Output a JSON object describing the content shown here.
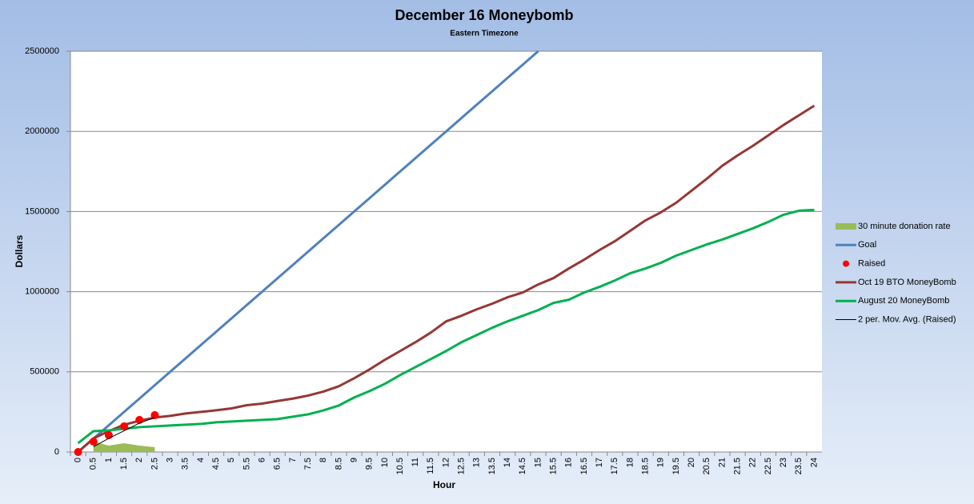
{
  "chart_data": {
    "type": "line",
    "title": "December 16 Moneybomb",
    "subtitle": "Eastern Timezone",
    "x_label": "Hour",
    "y_label": "Dollars",
    "categories": [
      "0",
      "0.5",
      "1",
      "1.5",
      "2",
      "2.5",
      "3",
      "3.5",
      "4",
      "4.5",
      "5",
      "5.5",
      "6",
      "6.5",
      "7",
      "7.5",
      "8",
      "8.5",
      "9",
      "9.5",
      "10",
      "10.5",
      "11",
      "11.5",
      "12",
      "12.5",
      "13",
      "13.5",
      "14",
      "14.5",
      "15",
      "15.5",
      "16",
      "16.5",
      "17",
      "17.5",
      "18",
      "18.5",
      "19",
      "19.5",
      "20",
      "20.5",
      "21",
      "21.5",
      "22",
      "22.5",
      "23",
      "23.5",
      "24"
    ],
    "ylim": [
      0,
      2500000
    ],
    "yticks": [
      0,
      500000,
      1000000,
      1500000,
      2000000,
      2500000
    ],
    "grid": true,
    "legend": "right",
    "series": [
      {
        "name": "30 minute donation rate",
        "type": "area",
        "color": "#9bbb59",
        "values": [
          null,
          65000,
          40000,
          55000,
          40000,
          30000,
          null,
          null,
          null,
          null,
          null,
          null,
          null,
          null,
          null,
          null,
          null,
          null,
          null,
          null,
          null,
          null,
          null,
          null,
          null,
          null,
          null,
          null,
          null,
          null,
          null,
          null,
          null,
          null,
          null,
          null,
          null,
          null,
          null,
          null,
          null,
          null,
          null,
          null,
          null,
          null,
          null,
          null,
          null
        ]
      },
      {
        "name": "Goal",
        "type": "line",
        "color": "#4f81bd",
        "values": [
          0,
          83333,
          166667,
          250000,
          333333,
          416667,
          500000,
          583333,
          666667,
          750000,
          833333,
          916667,
          1000000,
          1083333,
          1166667,
          1250000,
          1333333,
          1416667,
          1500000,
          1583333,
          1666667,
          1750000,
          1833333,
          1916667,
          2000000,
          2083333,
          2166667,
          2250000,
          2333333,
          2416667,
          2500000,
          null,
          null,
          null,
          null,
          null,
          null,
          null,
          null,
          null,
          null,
          null,
          null,
          null,
          null,
          null,
          null,
          null,
          null
        ]
      },
      {
        "name": "Raised",
        "type": "scatter",
        "color": "#ff0000",
        "values": [
          0,
          65000,
          105000,
          160000,
          200000,
          230000,
          null,
          null,
          null,
          null,
          null,
          null,
          null,
          null,
          null,
          null,
          null,
          null,
          null,
          null,
          null,
          null,
          null,
          null,
          null,
          null,
          null,
          null,
          null,
          null,
          null,
          null,
          null,
          null,
          null,
          null,
          null,
          null,
          null,
          null,
          null,
          null,
          null,
          null,
          null,
          null,
          null,
          null,
          null
        ]
      },
      {
        "name": "Oct 19 BTO MoneyBomb",
        "type": "line",
        "color": "#953735",
        "values": [
          0,
          85000,
          130000,
          170000,
          195000,
          215000,
          225000,
          240000,
          250000,
          260000,
          272000,
          292000,
          302000,
          318000,
          333000,
          352000,
          377000,
          410000,
          460000,
          515000,
          575000,
          630000,
          685000,
          745000,
          815000,
          850000,
          890000,
          925000,
          965000,
          995000,
          1045000,
          1085000,
          1145000,
          1200000,
          1260000,
          1315000,
          1380000,
          1445000,
          1495000,
          1555000,
          1630000,
          1705000,
          1785000,
          1850000,
          1910000,
          1975000,
          2040000,
          2100000,
          2160000
        ]
      },
      {
        "name": "August 20 MoneyBomb",
        "type": "line",
        "color": "#00b050",
        "values": [
          55000,
          130000,
          135000,
          145000,
          155000,
          160000,
          165000,
          170000,
          175000,
          185000,
          190000,
          195000,
          200000,
          205000,
          220000,
          235000,
          260000,
          290000,
          340000,
          380000,
          425000,
          480000,
          530000,
          580000,
          630000,
          685000,
          730000,
          775000,
          815000,
          850000,
          885000,
          930000,
          950000,
          995000,
          1030000,
          1070000,
          1115000,
          1145000,
          1180000,
          1225000,
          1260000,
          1295000,
          1325000,
          1360000,
          1395000,
          1435000,
          1480000,
          1505000,
          1510000
        ]
      },
      {
        "name": "2 per. Mov. Avg. (Raised)",
        "type": "line",
        "color": "#000000",
        "thin": true,
        "values": [
          null,
          32500,
          85000,
          132500,
          180000,
          215000,
          null,
          null,
          null,
          null,
          null,
          null,
          null,
          null,
          null,
          null,
          null,
          null,
          null,
          null,
          null,
          null,
          null,
          null,
          null,
          null,
          null,
          null,
          null,
          null,
          null,
          null,
          null,
          null,
          null,
          null,
          null,
          null,
          null,
          null,
          null,
          null,
          null,
          null,
          null,
          null,
          null,
          null,
          null
        ]
      }
    ]
  }
}
